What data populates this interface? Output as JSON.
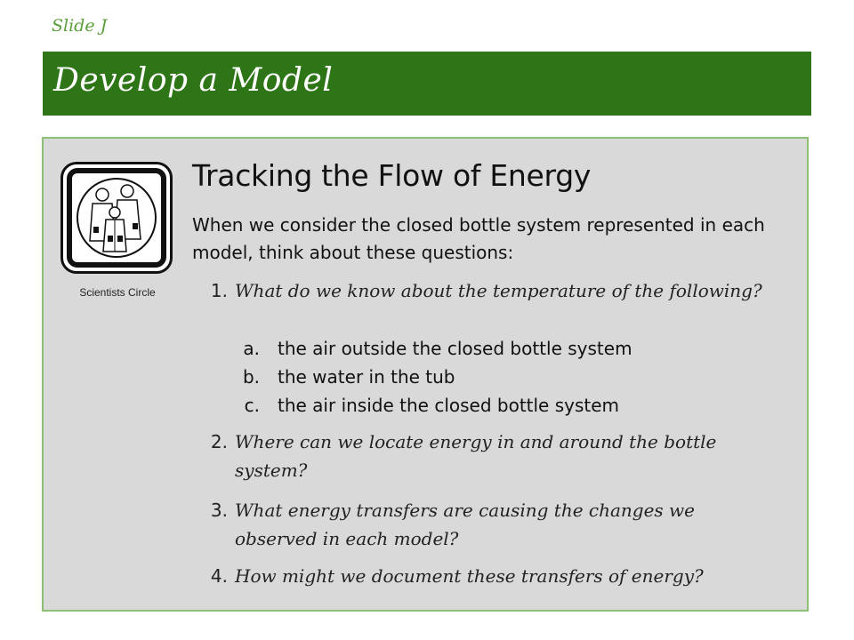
{
  "slide_label": "Slide J",
  "title": "Develop a Model",
  "icon": {
    "name": "scientists-circle-icon",
    "caption": "Scientists Circle"
  },
  "heading": "Tracking the Flow of Energy",
  "intro": "When we consider the closed bottle system represented in each model, think about these questions:",
  "questions": [
    {
      "num": "1.",
      "text": "What do we know about the temperature of the following?",
      "subitems": [
        {
          "letter": "a.",
          "text": "the air outside the closed bottle system"
        },
        {
          "letter": "b.",
          "text": "the water in the tub"
        },
        {
          "letter": "c.",
          "text": "the air inside the closed bottle system"
        }
      ]
    },
    {
      "num": "2.",
      "text": "Where can we locate energy in and around the bottle system?"
    },
    {
      "num": "3.",
      "text": "What energy transfers are causing the changes we observed in each model?"
    },
    {
      "num": "4.",
      "text": "How might we document these transfers of energy?"
    }
  ],
  "colors": {
    "title_bar": "#2e7517",
    "slide_label": "#5a9e3a",
    "content_bg": "#d9d9d9",
    "content_border": "#8fbf74"
  }
}
